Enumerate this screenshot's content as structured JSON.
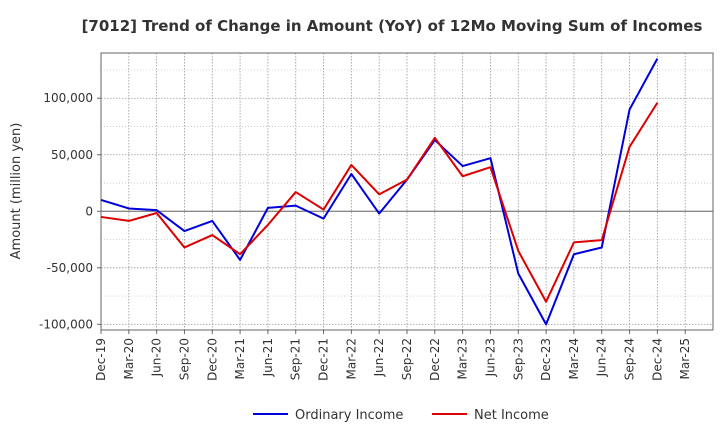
{
  "chart_data": {
    "type": "line",
    "title": "[7012]  Trend of Change in Amount (YoY) of 12Mo Moving Sum of Incomes",
    "ylabel": "Amount (million yen)",
    "xlabel": "",
    "ylim": [
      -105000,
      140000
    ],
    "yticks": [
      -100000,
      -50000,
      0,
      50000,
      100000
    ],
    "ytick_labels": [
      "-100,000",
      "-50,000",
      "0",
      "50,000",
      "100,000"
    ],
    "xtick_labels": [
      "Dec-19",
      "Mar-20",
      "Jun-20",
      "Sep-20",
      "Dec-20",
      "Mar-21",
      "Jun-21",
      "Sep-21",
      "Dec-21",
      "Mar-22",
      "Jun-22",
      "Sep-22",
      "Dec-22",
      "Mar-23",
      "Jun-23",
      "Sep-23",
      "Dec-23",
      "Mar-24",
      "Jun-24",
      "Sep-24",
      "Dec-24",
      "Mar-25"
    ],
    "categories": [
      "Dec-19",
      "Mar-20",
      "Jun-20",
      "Sep-20",
      "Dec-20",
      "Mar-21",
      "Jun-21",
      "Sep-21",
      "Dec-21",
      "Mar-22",
      "Jun-22",
      "Sep-22",
      "Dec-22",
      "Mar-23",
      "Jun-23",
      "Sep-23",
      "Dec-23",
      "Mar-24",
      "Jun-24",
      "Sep-24",
      "Dec-24",
      "Mar-25"
    ],
    "grid": true,
    "legend_position": "bottom",
    "series": [
      {
        "name": "Ordinary Income",
        "color": "#0000dd",
        "values": [
          10000,
          2500,
          1000,
          -17500,
          -8500,
          -43000,
          3000,
          5000,
          -6500,
          33000,
          -2000,
          28000,
          63000,
          40000,
          47000,
          -55000,
          -100000,
          -38000,
          -32000,
          90000,
          135000,
          null
        ]
      },
      {
        "name": "Net Income",
        "color": "#dd0000",
        "values": [
          -5000,
          -8500,
          -1500,
          -32000,
          -21000,
          -38000,
          -12000,
          17000,
          1500,
          41000,
          15000,
          28000,
          65000,
          31000,
          39000,
          -35000,
          -80000,
          -27500,
          -25500,
          57000,
          96000,
          null
        ]
      }
    ]
  }
}
